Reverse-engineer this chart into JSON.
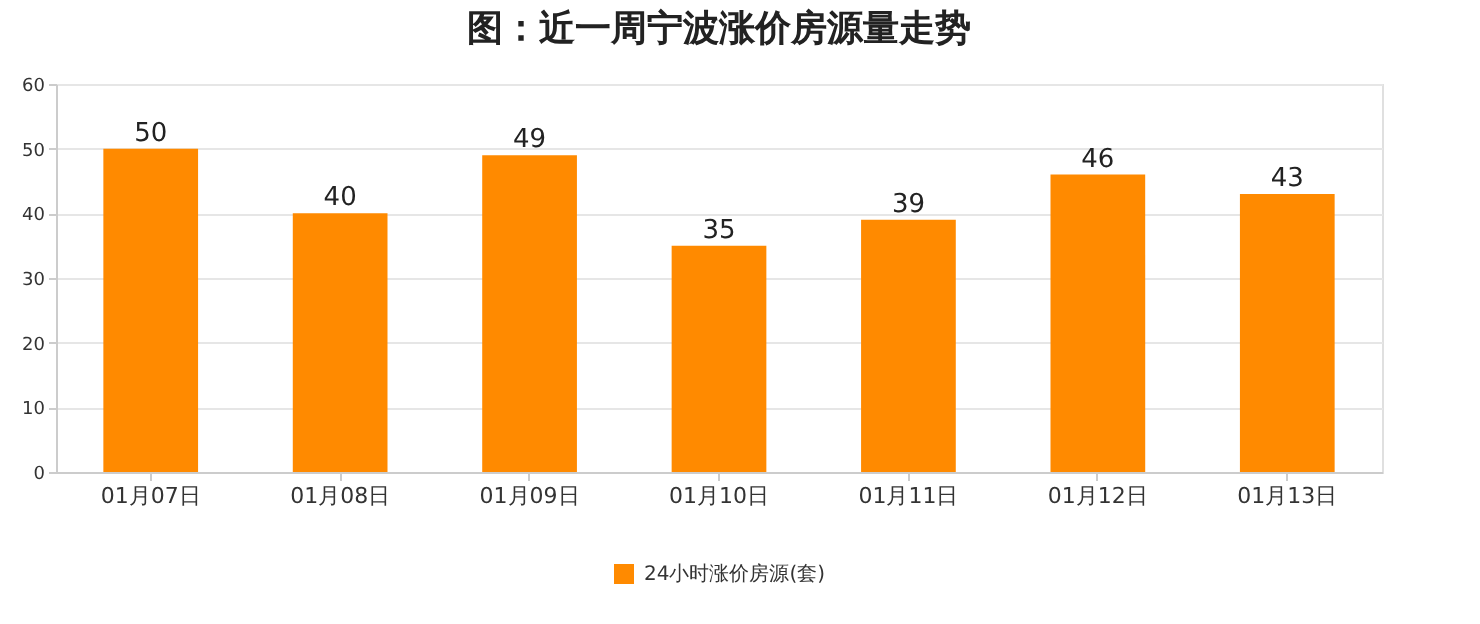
{
  "chart_data": {
    "type": "bar",
    "title": "图：近一周宁波涨价房源量走势",
    "categories": [
      "01月07日",
      "01月08日",
      "01月09日",
      "01月10日",
      "01月11日",
      "01月12日",
      "01月13日"
    ],
    "series": [
      {
        "name": "24小时涨价房源(套)",
        "color": "#ff8a00",
        "values": [
          50,
          40,
          49,
          35,
          39,
          46,
          43
        ]
      }
    ],
    "ylim": [
      0,
      60
    ],
    "yticks": [
      0,
      10,
      20,
      30,
      40,
      50,
      60
    ],
    "grid": "y",
    "legend": "bottom",
    "data_labels": true
  }
}
